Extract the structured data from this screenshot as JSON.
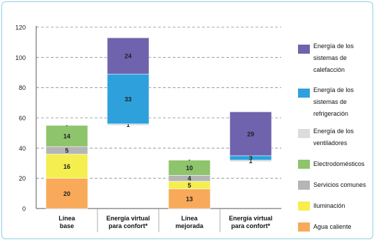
{
  "chart_data": {
    "type": "bar",
    "stacked": true,
    "floating": true,
    "ylim": [
      0,
      120
    ],
    "yticks": [
      "0",
      "20",
      "40",
      "60",
      "80",
      "100",
      "120"
    ],
    "grid": "dashed horizontal",
    "legend_position": "right",
    "categories": [
      [
        "Línea",
        "base"
      ],
      [
        "Energía virtual",
        "para confort*"
      ],
      [
        "Línea",
        "mejorada"
      ],
      [
        "Energía virtual",
        "para confort*"
      ]
    ],
    "series": [
      {
        "name": "Agua caliente",
        "color": "#f8a95a",
        "values": [
          20,
          0,
          13,
          0
        ],
        "labels": [
          "20",
          "",
          "13",
          ""
        ]
      },
      {
        "name": "Iluminación",
        "color": "#f4ee4f",
        "values": [
          16,
          0,
          5,
          0
        ],
        "labels": [
          "16",
          "",
          "5",
          ""
        ]
      },
      {
        "name": "Servicios comunes",
        "color": "#b5b5b5",
        "values": [
          5,
          0,
          4,
          0
        ],
        "labels": [
          "5",
          "",
          "4",
          ""
        ]
      },
      {
        "name": "Electrodomésticos",
        "color": "#8ec46c",
        "values": [
          14,
          0,
          10,
          0
        ],
        "labels": [
          "14",
          "",
          "10",
          ""
        ]
      },
      {
        "name": "Energía de los ventiladores",
        "color": "#dcdcdc",
        "values": [
          0,
          1,
          0,
          1
        ],
        "labels": [
          "-",
          "1",
          "-",
          "1"
        ]
      },
      {
        "name": "Energía de los sistemas de refrigeración",
        "color": "#2ea1dd",
        "values": [
          0,
          33,
          0,
          3
        ],
        "labels": [
          "",
          "33",
          "",
          "3"
        ]
      },
      {
        "name": "Energía de los sistemas de calefacción",
        "color": "#6e63ac",
        "values": [
          0,
          24,
          0,
          29
        ],
        "labels": [
          "",
          "24",
          "",
          "29"
        ]
      }
    ],
    "bar_start": [
      0,
      55,
      0,
      31
    ]
  },
  "legend_order": [
    6,
    5,
    4,
    3,
    2,
    1,
    0
  ],
  "legend_label_lines": [
    [
      "Energía de los",
      "sistemas de",
      "calefacción"
    ],
    [
      "Energía de los",
      "sistemas de",
      "refrigeración"
    ],
    [
      "Energía de los",
      "ventiladores"
    ],
    [
      "Electrodomésticos"
    ],
    [
      "Servicios comunes"
    ],
    [
      "Iluminación"
    ],
    [
      "Agua caliente"
    ]
  ]
}
